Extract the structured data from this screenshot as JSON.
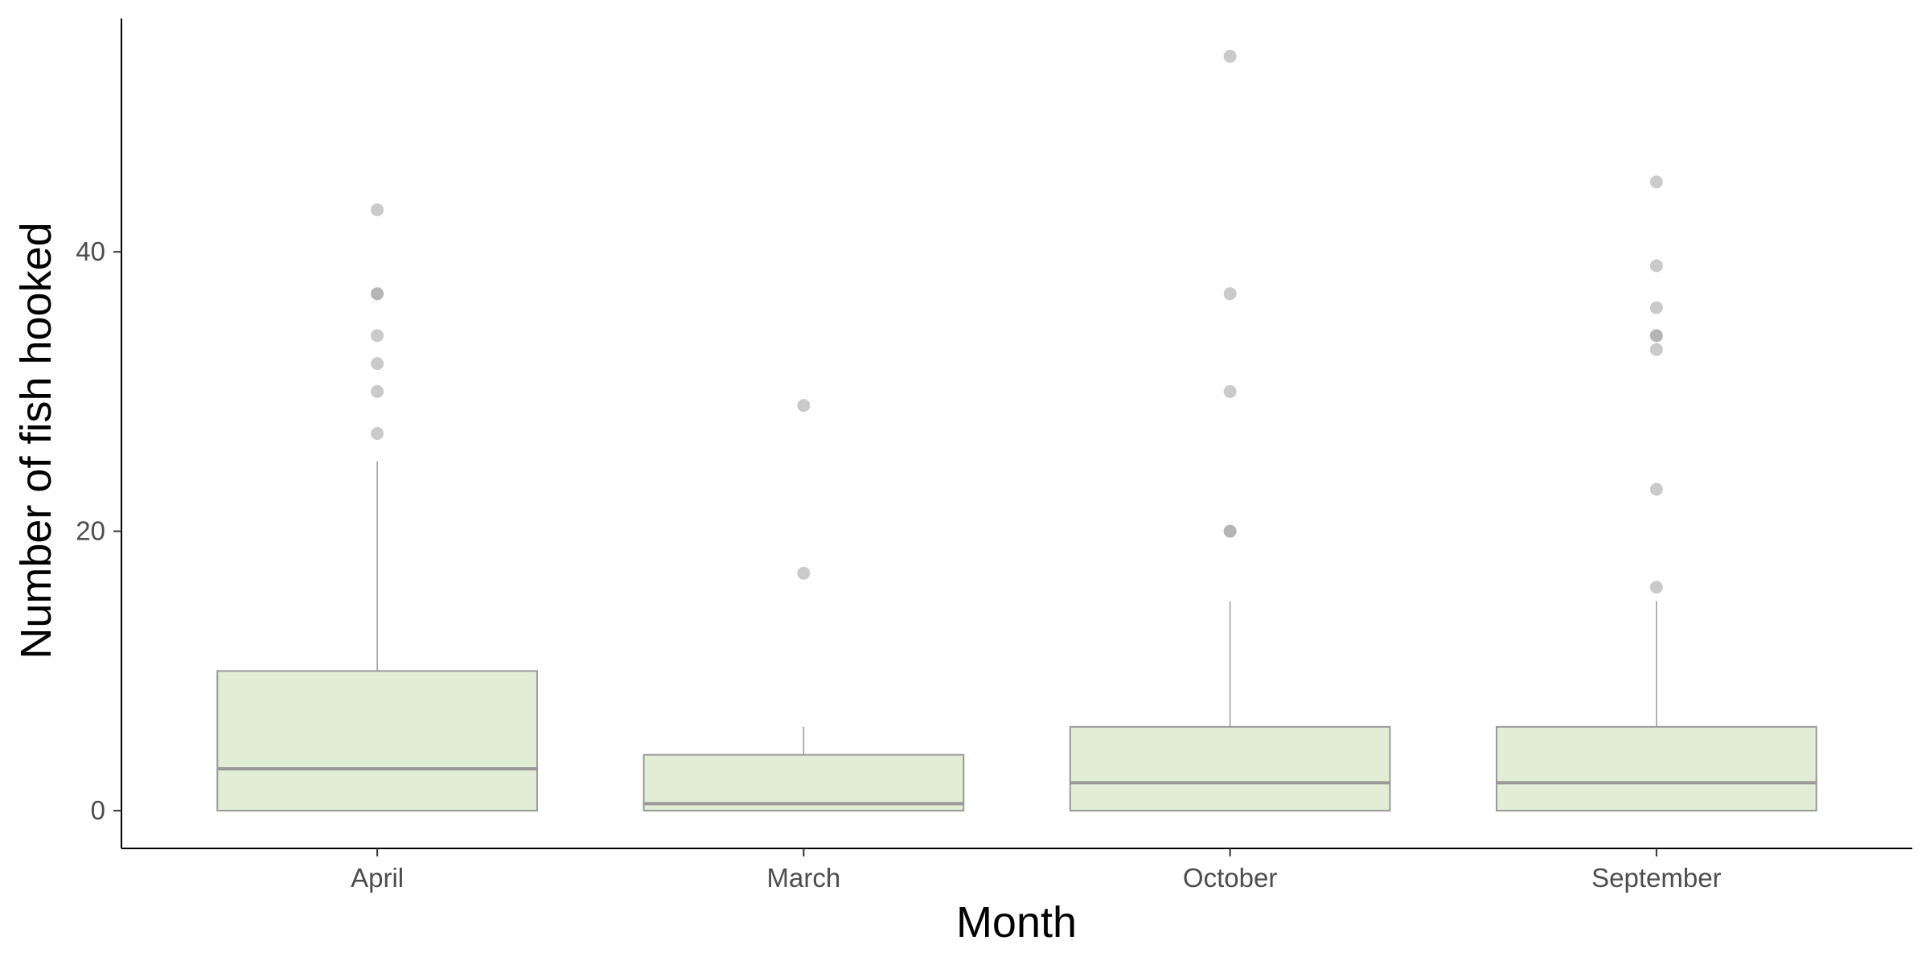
{
  "chart_data": {
    "type": "boxplot",
    "title": "",
    "xlabel": "Month",
    "ylabel": "Number of fish hooked",
    "categories": [
      "April",
      "March",
      "October",
      "September"
    ],
    "boxes": [
      {
        "category": "April",
        "min": 0,
        "q1": 0,
        "median": 3,
        "q3": 10,
        "max": 25,
        "outliers": [
          27,
          30,
          32,
          34,
          37,
          37,
          43
        ]
      },
      {
        "category": "March",
        "min": 0,
        "q1": 0,
        "median": 0.5,
        "q3": 4,
        "max": 6,
        "outliers": [
          17,
          29
        ]
      },
      {
        "category": "October",
        "min": 0,
        "q1": 0,
        "median": 2,
        "q3": 6,
        "max": 15,
        "outliers": [
          20,
          20,
          30,
          37,
          54
        ]
      },
      {
        "category": "September",
        "min": 0,
        "q1": 0,
        "median": 2,
        "q3": 6,
        "max": 15,
        "outliers": [
          16,
          23,
          33,
          34,
          34,
          36,
          39,
          45
        ]
      }
    ],
    "y_ticks": [
      0,
      20,
      40
    ],
    "ylim": [
      -2.7,
      56.7
    ],
    "grid": false,
    "legend": "none",
    "colors": {
      "box_fill": "#e1edd5",
      "box_stroke": "#999999",
      "median": "#999999",
      "whisker": "#999999",
      "outlier": "#a6a6a6",
      "axis": "#000000"
    }
  }
}
